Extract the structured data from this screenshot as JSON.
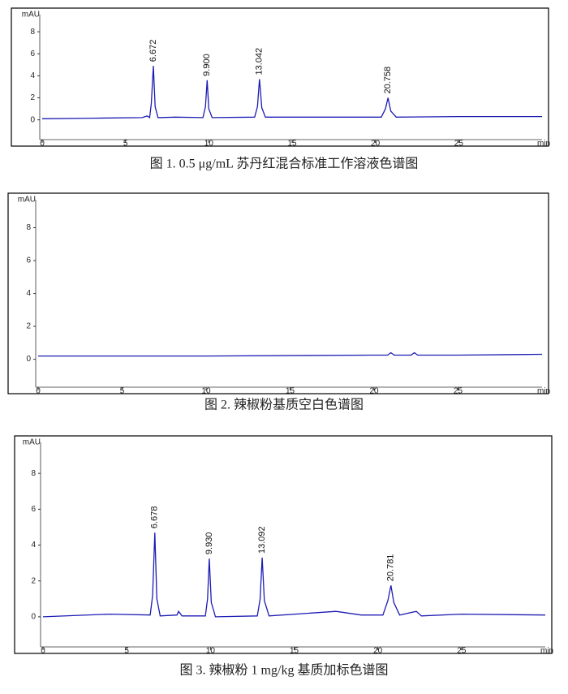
{
  "chart_data": [
    {
      "type": "line",
      "caption": "图 1. 0.5 μg/mL 苏丹红混合标准工作溶液色谱图",
      "ylabel": "mAU",
      "xlabel": "min",
      "xlim": [
        0,
        30
      ],
      "xticks": [
        0,
        5,
        10,
        15,
        20,
        25
      ],
      "ylim": [
        -1.5,
        10
      ],
      "yticks": [
        0,
        2,
        4,
        6,
        8
      ],
      "series": [
        {
          "color": "#1c1cb4",
          "x": [
            0,
            3,
            6,
            6.3,
            6.45,
            6.55,
            6.672,
            6.78,
            6.95,
            8,
            9.65,
            9.8,
            9.9,
            10.0,
            10.2,
            12.75,
            12.92,
            13.042,
            13.18,
            13.4,
            20.35,
            20.6,
            20.758,
            20.92,
            21.25,
            25,
            30
          ],
          "values": [
            0.1,
            0.15,
            0.2,
            0.35,
            0.2,
            1.5,
            4.9,
            1.2,
            0.2,
            0.25,
            0.2,
            1.2,
            3.6,
            1.0,
            0.2,
            0.25,
            1.2,
            3.7,
            1.1,
            0.25,
            0.25,
            1.0,
            2.0,
            0.8,
            0.25,
            0.3,
            0.3
          ]
        }
      ],
      "peaks": [
        {
          "x": 6.672,
          "y": 4.9,
          "label": "6.672"
        },
        {
          "x": 9.9,
          "y": 3.6,
          "label": "9.900"
        },
        {
          "x": 13.042,
          "y": 3.7,
          "label": "13.042"
        },
        {
          "x": 20.758,
          "y": 2.0,
          "label": "20.758"
        }
      ]
    },
    {
      "type": "line",
      "caption": "图 2. 辣椒粉基质空白色谱图",
      "ylabel": "mAU",
      "xlabel": "min",
      "xlim": [
        0,
        30
      ],
      "xticks": [
        0,
        5,
        10,
        15,
        20,
        25
      ],
      "ylim": [
        -1.5,
        10
      ],
      "yticks": [
        0,
        2,
        4,
        6,
        8
      ],
      "series": [
        {
          "color": "#1c1cb4",
          "x": [
            0,
            10,
            20,
            20.8,
            21,
            21.2,
            22.2,
            22.4,
            22.6,
            25,
            30
          ],
          "values": [
            0.2,
            0.2,
            0.25,
            0.25,
            0.4,
            0.25,
            0.25,
            0.4,
            0.25,
            0.25,
            0.3
          ]
        }
      ],
      "peaks": []
    },
    {
      "type": "line",
      "caption": "图 3. 辣椒粉 1 mg/kg 基质加标色谱图",
      "ylabel": "mAU",
      "xlabel": "min",
      "xlim": [
        0,
        30
      ],
      "xticks": [
        0,
        5,
        10,
        15,
        20,
        25
      ],
      "ylim": [
        -1.5,
        10
      ],
      "yticks": [
        0,
        2,
        4,
        6,
        8
      ],
      "series": [
        {
          "color": "#1c1cb4",
          "x": [
            0,
            4,
            6.4,
            6.55,
            6.678,
            6.8,
            7,
            8,
            8.1,
            8.3,
            9.7,
            9.83,
            9.93,
            10.05,
            10.3,
            12.8,
            12.97,
            13.092,
            13.22,
            13.5,
            17.5,
            19,
            20.3,
            20.6,
            20.781,
            20.95,
            21.3,
            22.3,
            22.6,
            25,
            30
          ],
          "values": [
            0.0,
            0.15,
            0.1,
            1.2,
            4.7,
            1.0,
            0.05,
            0.1,
            0.3,
            0.05,
            0.05,
            1.0,
            3.25,
            0.8,
            0.0,
            0.05,
            1.0,
            3.3,
            0.9,
            0.05,
            0.3,
            0.1,
            0.1,
            0.9,
            1.75,
            0.8,
            0.1,
            0.3,
            0.05,
            0.15,
            0.1
          ]
        }
      ],
      "peaks": [
        {
          "x": 6.678,
          "y": 4.7,
          "label": "6.678"
        },
        {
          "x": 9.93,
          "y": 3.25,
          "label": "9.930"
        },
        {
          "x": 13.092,
          "y": 3.3,
          "label": "13.092"
        },
        {
          "x": 20.781,
          "y": 1.75,
          "label": "20.781"
        }
      ]
    }
  ]
}
